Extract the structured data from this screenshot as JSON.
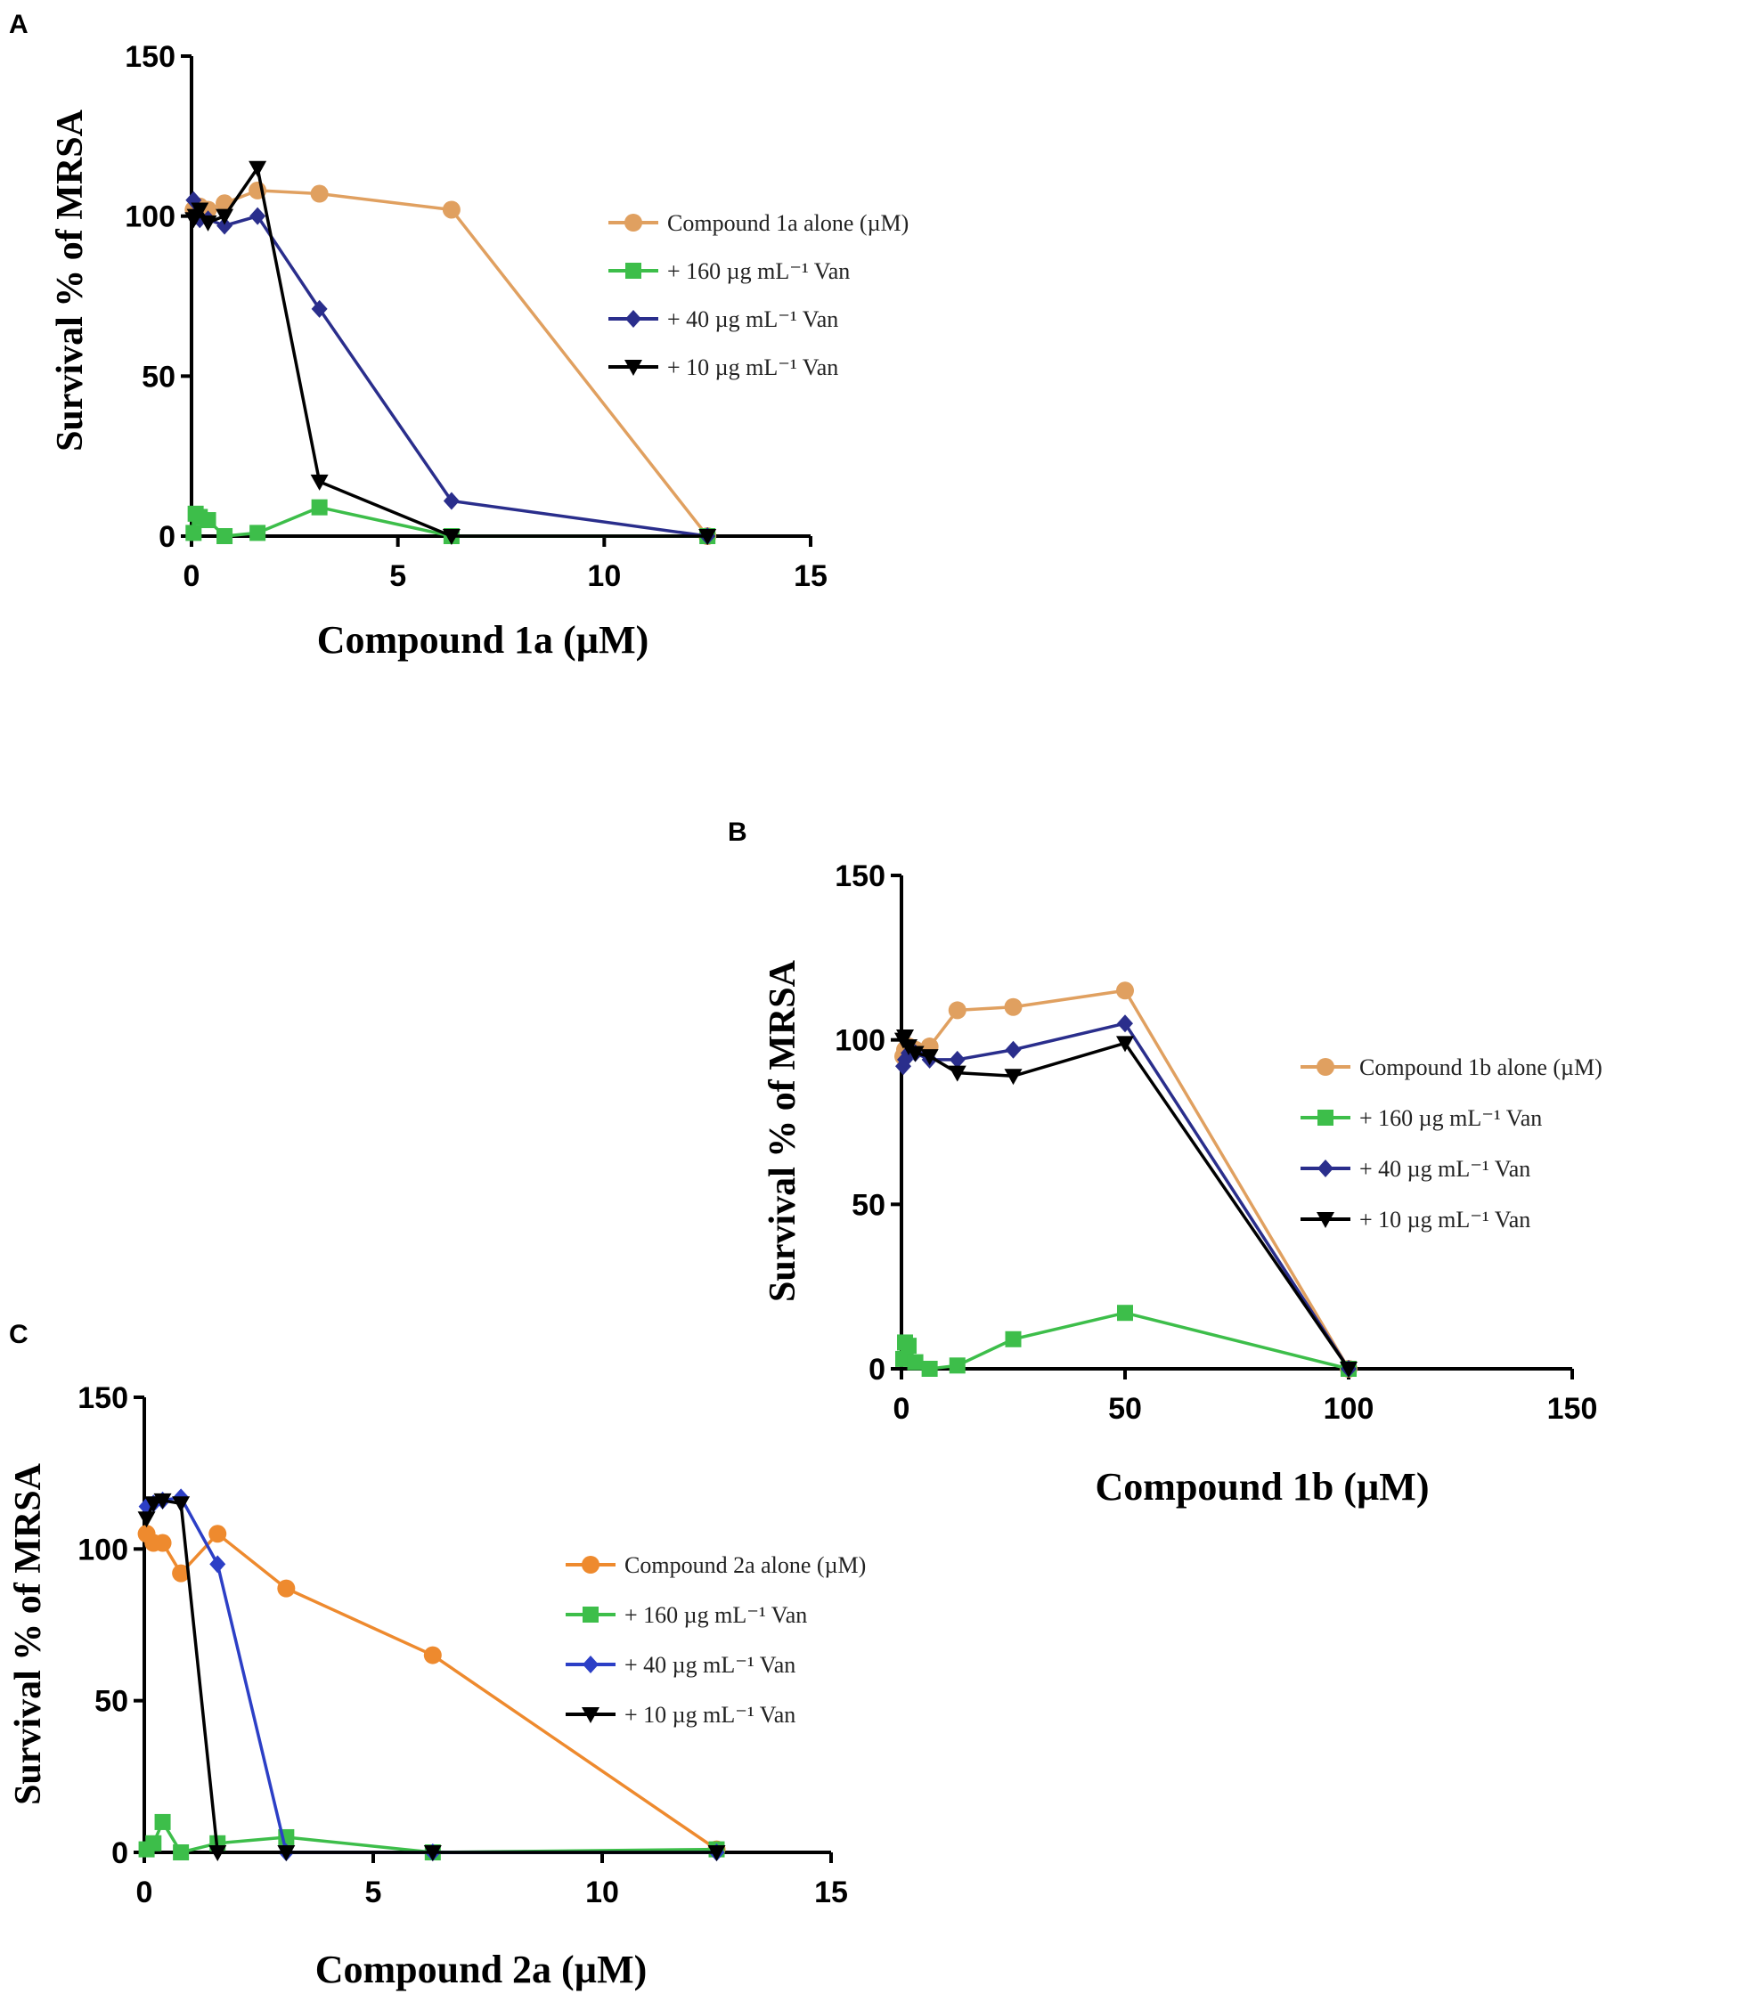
{
  "chart_data": [
    {
      "panel": "A",
      "type": "line",
      "xlabel": "Compound 1a (µM)",
      "ylabel": "Survival % of MRSA",
      "xlim": [
        0,
        15
      ],
      "ylim": [
        0,
        150
      ],
      "xticks": [
        0,
        5,
        10,
        15
      ],
      "yticks": [
        0,
        50,
        100,
        150
      ],
      "legend_position": "right",
      "series": [
        {
          "name": "Compound 1a alone (µM)",
          "marker": "circle",
          "color": "#E0A060",
          "x": [
            0.05,
            0.1,
            0.2,
            0.4,
            0.8,
            1.6,
            3.1,
            6.3,
            12.5
          ],
          "y": [
            102,
            101,
            103,
            102,
            104,
            108,
            107,
            102,
            0
          ]
        },
        {
          "name": "+ 160 µg mL⁻¹ Van",
          "marker": "square",
          "color": "#3DBE4A",
          "x": [
            0.05,
            0.1,
            0.2,
            0.4,
            0.8,
            1.6,
            3.1,
            6.3,
            12.5
          ],
          "y": [
            1,
            7,
            6,
            5,
            0,
            1,
            9,
            0,
            0
          ]
        },
        {
          "name": "+ 40 µg mL⁻¹ Van",
          "marker": "diamond",
          "color": "#2A2E8C",
          "x": [
            0.05,
            0.1,
            0.2,
            0.4,
            0.8,
            1.6,
            3.1,
            6.3,
            12.5
          ],
          "y": [
            105,
            100,
            99,
            99,
            97,
            100,
            71,
            11,
            0
          ]
        },
        {
          "name": "+ 10 µg mL⁻¹ Van",
          "marker": "triangle-down",
          "color": "#000000",
          "x": [
            0.05,
            0.1,
            0.2,
            0.4,
            0.8,
            1.6,
            3.1,
            6.3,
            12.5
          ],
          "y": [
            99,
            100,
            102,
            98,
            100,
            115,
            17,
            0,
            0
          ]
        }
      ]
    },
    {
      "panel": "B",
      "type": "line",
      "xlabel": "Compound 1b (µM)",
      "ylabel": "Survival % of MRSA",
      "xlim": [
        0,
        150
      ],
      "ylim": [
        0,
        150
      ],
      "xticks": [
        0,
        50,
        100,
        150
      ],
      "yticks": [
        0,
        50,
        100,
        150
      ],
      "legend_position": "right",
      "series": [
        {
          "name": "Compound 1b alone (µM)",
          "marker": "circle",
          "color": "#E0A060",
          "x": [
            0.4,
            0.8,
            1.6,
            3.1,
            6.3,
            12.5,
            25,
            50,
            100
          ],
          "y": [
            95,
            97,
            98,
            97,
            98,
            109,
            110,
            115,
            0
          ]
        },
        {
          "name": "+ 160 µg mL⁻¹ Van",
          "marker": "square",
          "color": "#3DBE4A",
          "x": [
            0.4,
            0.8,
            1.6,
            3.1,
            6.3,
            12.5,
            25,
            50,
            100
          ],
          "y": [
            3,
            8,
            7,
            2,
            0,
            1,
            9,
            17,
            0
          ]
        },
        {
          "name": "+ 40 µg mL⁻¹ Van",
          "marker": "diamond",
          "color": "#2A2E8C",
          "x": [
            0.4,
            0.8,
            1.6,
            3.1,
            6.3,
            12.5,
            25,
            50,
            100
          ],
          "y": [
            92,
            94,
            96,
            96,
            94,
            94,
            97,
            105,
            0
          ]
        },
        {
          "name": "+ 10 µg mL⁻¹ Van",
          "marker": "triangle-down",
          "color": "#000000",
          "x": [
            0.4,
            0.8,
            1.6,
            3.1,
            6.3,
            12.5,
            25,
            50,
            100
          ],
          "y": [
            100,
            101,
            98,
            96,
            95,
            90,
            89,
            99,
            0
          ]
        }
      ]
    },
    {
      "panel": "C",
      "type": "line",
      "xlabel": "Compound 2a (µM)",
      "ylabel": "Survival % of MRSA",
      "xlim": [
        0,
        15
      ],
      "ylim": [
        0,
        150
      ],
      "xticks": [
        0,
        5,
        10,
        15
      ],
      "yticks": [
        0,
        50,
        100,
        150
      ],
      "legend_position": "right",
      "series": [
        {
          "name": "Compound 2a alone (µM)",
          "marker": "circle",
          "color": "#EE8A2E",
          "x": [
            0.05,
            0.2,
            0.4,
            0.8,
            1.6,
            3.1,
            6.3,
            12.5
          ],
          "y": [
            105,
            102,
            102,
            92,
            105,
            87,
            65,
            1
          ]
        },
        {
          "name": "+ 160 µg mL⁻¹ Van",
          "marker": "square",
          "color": "#3DBE4A",
          "x": [
            0.05,
            0.2,
            0.4,
            0.8,
            1.6,
            3.1,
            6.3,
            12.5
          ],
          "y": [
            1,
            3,
            10,
            0,
            3,
            5,
            0,
            1
          ]
        },
        {
          "name": "+ 40 µg mL⁻¹ Van",
          "marker": "diamond",
          "color": "#2C3FC6",
          "x": [
            0.05,
            0.2,
            0.4,
            0.8,
            1.6,
            3.1,
            6.3,
            12.5
          ],
          "y": [
            114,
            115,
            116,
            117,
            95,
            0,
            0,
            0
          ]
        },
        {
          "name": "+ 10 µg mL⁻¹ Van",
          "marker": "triangle-down",
          "color": "#000000",
          "x": [
            0.05,
            0.2,
            0.4,
            0.8,
            1.6,
            3.1,
            6.3,
            12.5
          ],
          "y": [
            110,
            115,
            116,
            115,
            0,
            0,
            0,
            0
          ]
        }
      ]
    }
  ]
}
